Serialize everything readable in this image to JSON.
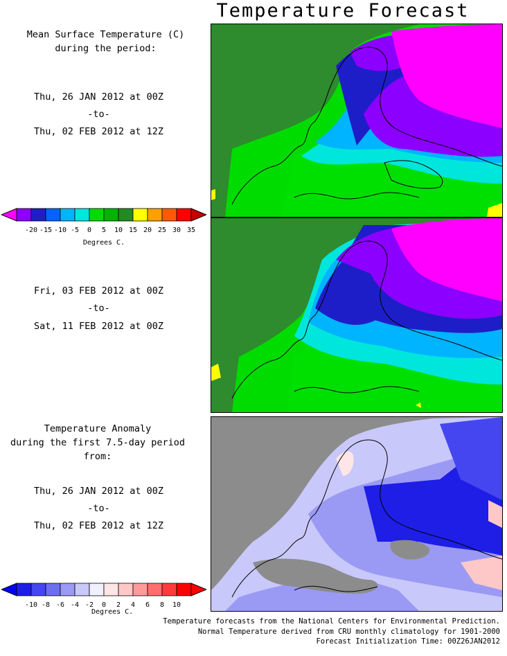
{
  "title": "Temperature Forecast",
  "panel1": {
    "heading_line1": "Mean Surface Temperature (C)",
    "heading_line2": "during the period:",
    "start": "Thu, 26 JAN 2012 at 00Z",
    "to": "-to-",
    "end": "Thu, 02 FEB 2012 at 12Z"
  },
  "temp_legend": {
    "labels": [
      "-20",
      "-15",
      "-10",
      "-5",
      "0",
      "5",
      "10",
      "15",
      "20",
      "25",
      "30",
      "35"
    ],
    "colors": [
      "#8b00ff",
      "#1e1ec8",
      "#0064ff",
      "#00b4ff",
      "#00e6dc",
      "#00dc00",
      "#00b400",
      "#228b22",
      "#ffff00",
      "#ffa000",
      "#ff5a00",
      "#ff0000"
    ],
    "low_color": "#ff00ff",
    "high_color": "#c80000",
    "unit": "Degrees C."
  },
  "panel2": {
    "start": "Fri, 03 FEB 2012 at 00Z",
    "to": "-to-",
    "end": "Sat, 11 FEB 2012 at 00Z"
  },
  "panel3": {
    "heading_line1": "Temperature Anomaly",
    "heading_line2": "during the first 7.5-day period from:",
    "start": "Thu, 26 JAN 2012 at 00Z",
    "to": "-to-",
    "end": "Thu, 02 FEB 2012 at 12Z"
  },
  "anomaly_legend": {
    "labels": [
      "-10",
      "-8",
      "-6",
      "-4",
      "-2",
      "0",
      "2",
      "4",
      "6",
      "8",
      "10"
    ],
    "colors": [
      "#1e1ee6",
      "#4646f0",
      "#6e6ef0",
      "#9a9af5",
      "#c8c8fa",
      "#f0f0ff",
      "#ffe6e6",
      "#ffc8c8",
      "#ff9a9a",
      "#ff6e6e",
      "#ff3c3c",
      "#ff0000"
    ],
    "low_color": "#0000ff",
    "high_color": "#ff0000",
    "unit": "Degrees C."
  },
  "footer": {
    "line1": "Temperature forecasts from the National Centers for Environmental Prediction.",
    "line2": "Normal Temperature derived from CRU monthly climatology for 1901-2000",
    "line3": "Forecast Initialization Time: 00Z26JAN2012"
  },
  "colors": {
    "ocean_green": "#2e8b2e",
    "land_green": "#00dc00",
    "bright_green": "#00e000",
    "cyan": "#00e6dc",
    "lightblue": "#00b4ff",
    "blue": "#1e1ec8",
    "purple": "#8b00ff",
    "magenta": "#ff00ff",
    "gray": "#8c8c8c"
  },
  "chart_data": [
    {
      "type": "heatmap",
      "title": "Mean Surface Temperature (C)",
      "period": "Thu, 26 JAN 2012 at 00Z - Thu, 02 FEB 2012 at 12Z",
      "colorbar_ticks": [
        -20,
        -15,
        -10,
        -5,
        0,
        5,
        10,
        15,
        20,
        25,
        30,
        35
      ],
      "colorbar_unit": "Degrees C."
    },
    {
      "type": "heatmap",
      "period": "Fri, 03 FEB 2012 at 00Z - Sat, 11 FEB 2012 at 00Z",
      "colorbar_ticks": [
        -20,
        -15,
        -10,
        -5,
        0,
        5,
        10,
        15,
        20,
        25,
        30,
        35
      ],
      "colorbar_unit": "Degrees C."
    },
    {
      "type": "heatmap",
      "title": "Temperature Anomaly",
      "period": "Thu, 26 JAN 2012 at 00Z - Thu, 02 FEB 2012 at 12Z",
      "colorbar_ticks": [
        -10,
        -8,
        -6,
        -4,
        -2,
        0,
        2,
        4,
        6,
        8,
        10
      ],
      "colorbar_unit": "Degrees C."
    }
  ]
}
